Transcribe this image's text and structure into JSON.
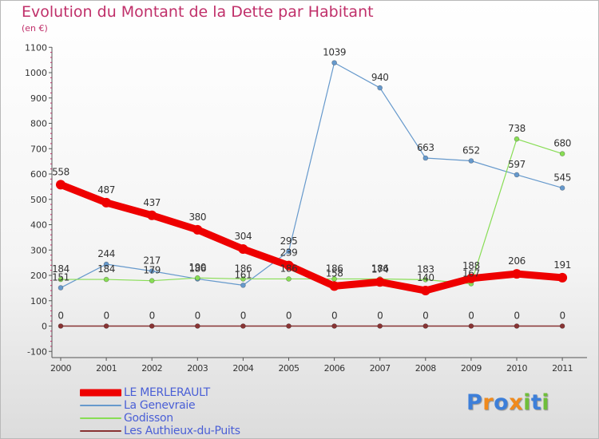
{
  "title": "Evolution du Montant de la Dette par Habitant",
  "subtitle": "(en €)",
  "logo": {
    "text": "Proxiti",
    "letters": [
      {
        "ch": "P",
        "color": "#3d7fd9"
      },
      {
        "ch": "r",
        "color": "#f08a1c"
      },
      {
        "ch": "o",
        "color": "#3d7fd9"
      },
      {
        "ch": "x",
        "color": "#f08a1c"
      },
      {
        "ch": "i",
        "color": "#6fbe3a"
      },
      {
        "ch": "t",
        "color": "#3d7fd9"
      },
      {
        "ch": "i",
        "color": "#6fbe3a"
      }
    ]
  },
  "chart_data": {
    "type": "line",
    "title": "Evolution du Montant de la Dette par Habitant",
    "ylabel": "(en €)",
    "xlabel": "",
    "x": [
      "2000",
      "2001",
      "2002",
      "2003",
      "2004",
      "2005",
      "2006",
      "2007",
      "2008",
      "2009",
      "2010",
      "2011"
    ],
    "ylim": [
      -100,
      1100
    ],
    "yticks": [
      -100,
      0,
      100,
      200,
      300,
      400,
      500,
      600,
      700,
      800,
      900,
      1000,
      1100
    ],
    "grid": false,
    "legend": "bottom-left",
    "series": [
      {
        "name": "LE MERLERAULT",
        "color": "#ee0000",
        "values": [
          558,
          487,
          437,
          380,
          304,
          239,
          158,
          174,
          140,
          188,
          206,
          191
        ]
      },
      {
        "name": "La Genevraie",
        "color": "#6699cc",
        "values": [
          151,
          244,
          217,
          186,
          161,
          295,
          1039,
          940,
          663,
          652,
          597,
          545
        ]
      },
      {
        "name": "Godisson",
        "color": "#88dd55",
        "values": [
          184,
          184,
          179,
          190,
          186,
          186,
          186,
          186,
          183,
          167,
          738,
          680
        ]
      },
      {
        "name": "Les Authieux-du-Puits",
        "color": "#883333",
        "values": [
          0,
          0,
          0,
          0,
          0,
          0,
          0,
          0,
          0,
          0,
          0,
          0
        ]
      }
    ]
  }
}
